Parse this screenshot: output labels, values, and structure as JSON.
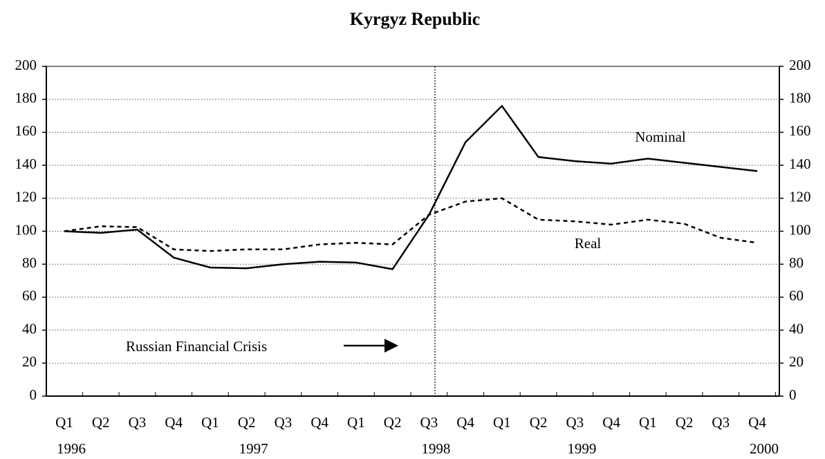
{
  "chart_data": {
    "type": "line",
    "title": "Kyrgyz Republic",
    "categories": [
      "Q1",
      "Q2",
      "Q3",
      "Q4",
      "Q1",
      "Q2",
      "Q3",
      "Q4",
      "Q1",
      "Q2",
      "Q3",
      "Q4",
      "Q1",
      "Q2",
      "Q3",
      "Q4",
      "Q1",
      "Q2",
      "Q3",
      "Q4"
    ],
    "year_labels": [
      "1996",
      null,
      null,
      null,
      null,
      "1997",
      null,
      null,
      null,
      null,
      "1998",
      null,
      null,
      null,
      "1999",
      null,
      null,
      null,
      null,
      "2000"
    ],
    "series": [
      {
        "name": "Nominal",
        "color": "#000000",
        "dash": "solid",
        "values": [
          100,
          99,
          101,
          84,
          78,
          77.5,
          80,
          81.5,
          81,
          77,
          110,
          154,
          176,
          145,
          142.5,
          141,
          144,
          141.5,
          139,
          136.5
        ]
      },
      {
        "name": "Real",
        "color": "#000000",
        "dash": "dashed",
        "values": [
          100,
          103,
          102.5,
          89,
          88,
          89,
          89,
          92,
          93,
          92,
          110,
          118,
          120,
          107,
          106,
          104,
          107,
          104.5,
          96,
          93
        ]
      }
    ],
    "annotations": [
      "Russian Financial Crisis"
    ],
    "ylim": [
      0,
      200
    ],
    "yticks": [
      0,
      20,
      40,
      60,
      80,
      100,
      120,
      140,
      160,
      180,
      200
    ],
    "y2lim": [
      0,
      200
    ],
    "y2ticks": [
      0,
      20,
      40,
      60,
      80,
      100,
      120,
      140,
      160,
      180,
      200
    ],
    "grid": true
  }
}
